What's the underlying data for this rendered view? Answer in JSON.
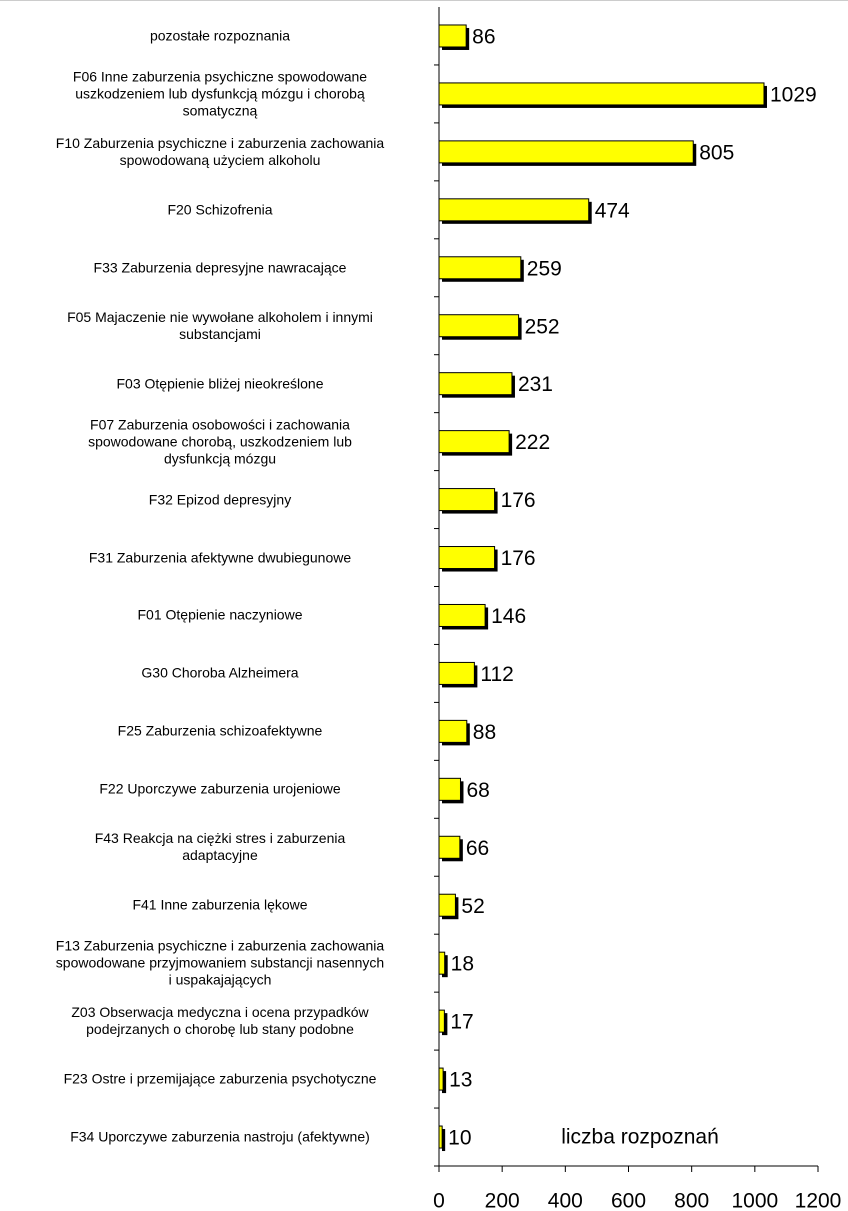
{
  "chart_data": {
    "type": "hbar",
    "categories": [
      "pozostałe rozpoznania",
      "F06 Inne zaburzenia psychiczne spowodowane\nuszkodzeniem lub dysfunkcją mózgu i chorobą\nsomatyczną",
      "F10 Zaburzenia psychiczne i zaburzenia zachowania\nspowodowaną użyciem alkoholu",
      "F20 Schizofrenia",
      "F33 Zaburzenia depresyjne nawracające",
      "F05 Majaczenie nie wywołane alkoholem i innymi\nsubstancjami",
      "F03 Otępienie bliżej nieokreślone",
      "F07 Zaburzenia osobowości i zachowania\nspowodowane chorobą, uszkodzeniem lub\ndysfunkcją mózgu",
      "F32 Epizod depresyjny",
      "F31 Zaburzenia afektywne dwubiegunowe",
      "F01 Otępienie naczyniowe",
      "G30 Choroba Alzheimera",
      "F25 Zaburzenia schizoafektywne",
      "F22 Uporczywe zaburzenia urojeniowe",
      "F43 Reakcja na ciężki stres i zaburzenia\nadaptacyjne",
      "F41 Inne zaburzenia lękowe",
      "F13 Zaburzenia psychiczne i zaburzenia zachowania\nspowodowane przyjmowaniem substancji nasennych\ni uspakajających",
      "Z03 Obserwacja medyczna i ocena przypadków\npodejrzanych o chorobę lub stany podobne",
      "F23 Ostre i przemijające zaburzenia psychotyczne",
      "F34 Uporczywe zaburzenia nastroju (afektywne)"
    ],
    "values": [
      86,
      1029,
      805,
      474,
      259,
      252,
      231,
      222,
      176,
      176,
      146,
      112,
      88,
      68,
      66,
      52,
      18,
      17,
      13,
      10
    ],
    "color": "#ffff00",
    "xlabel": "liczba rozpoznań",
    "xlim": [
      0,
      1200
    ],
    "xticks": [
      0,
      200,
      400,
      600,
      800,
      1000,
      1200
    ]
  }
}
